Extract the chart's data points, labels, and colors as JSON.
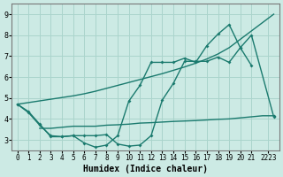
{
  "background_color": "#cceae4",
  "grid_color": "#aad4cc",
  "line_color": "#1a7a6e",
  "xlabel": "Humidex (Indice chaleur)",
  "xlim": [
    -0.5,
    23.5
  ],
  "ylim": [
    2.5,
    9.5
  ],
  "yticks": [
    3,
    4,
    5,
    6,
    7,
    8,
    9
  ],
  "xtick_labels": [
    "0",
    "1",
    "2",
    "3",
    "4",
    "5",
    "6",
    "7",
    "8",
    "9",
    "10",
    "11",
    "12",
    "13",
    "14",
    "15",
    "16",
    "17",
    "18",
    "19",
    "20",
    "21",
    "2223"
  ],
  "xtick_positions": [
    0,
    1,
    2,
    3,
    4,
    5,
    6,
    7,
    8,
    9,
    10,
    11,
    12,
    13,
    14,
    15,
    16,
    17,
    18,
    19,
    20,
    21,
    22.5
  ],
  "line1_x": [
    0,
    1,
    2,
    3,
    4,
    5,
    6,
    7,
    8,
    9,
    10,
    11,
    12,
    13,
    14,
    15,
    16,
    17,
    18,
    19,
    20,
    21,
    22,
    23
  ],
  "line1_y": [
    4.7,
    4.78,
    4.86,
    4.94,
    5.02,
    5.1,
    5.2,
    5.32,
    5.46,
    5.6,
    5.74,
    5.88,
    6.02,
    6.16,
    6.32,
    6.48,
    6.66,
    6.86,
    7.1,
    7.4,
    7.8,
    8.2,
    8.6,
    9.0
  ],
  "line2_x": [
    0,
    1,
    2,
    3,
    4,
    5,
    6,
    7,
    8,
    9,
    10,
    11,
    12,
    13,
    14,
    15,
    16,
    17,
    18,
    19,
    20,
    21,
    23
  ],
  "line2_y": [
    4.7,
    4.35,
    3.75,
    3.15,
    3.15,
    3.2,
    3.2,
    3.2,
    3.25,
    2.8,
    2.7,
    2.75,
    3.2,
    4.9,
    5.7,
    6.75,
    6.75,
    6.75,
    6.95,
    6.7,
    7.4,
    8.0,
    4.1
  ],
  "line3_x": [
    0,
    1,
    2,
    3,
    4,
    5,
    6,
    7,
    8,
    9,
    10,
    11,
    12,
    13,
    14,
    15,
    16,
    17,
    18,
    19,
    20,
    21,
    22,
    23
  ],
  "line3_y": [
    4.7,
    4.3,
    3.7,
    3.2,
    3.15,
    3.2,
    2.85,
    2.65,
    2.75,
    3.2,
    4.85,
    5.6,
    6.7,
    6.7,
    6.7,
    6.9,
    6.7,
    7.5,
    8.05,
    8.5,
    7.4,
    6.55,
    null,
    4.15
  ],
  "line4_x": [
    2,
    3,
    4,
    5,
    6,
    7,
    8,
    9,
    10,
    11,
    12,
    13,
    14,
    15,
    16,
    17,
    18,
    19,
    20,
    21,
    22,
    23
  ],
  "line4_y": [
    3.55,
    3.55,
    3.6,
    3.65,
    3.65,
    3.65,
    3.7,
    3.72,
    3.75,
    3.8,
    3.82,
    3.85,
    3.88,
    3.9,
    3.92,
    3.95,
    3.98,
    4.0,
    4.05,
    4.1,
    4.15,
    4.15
  ]
}
